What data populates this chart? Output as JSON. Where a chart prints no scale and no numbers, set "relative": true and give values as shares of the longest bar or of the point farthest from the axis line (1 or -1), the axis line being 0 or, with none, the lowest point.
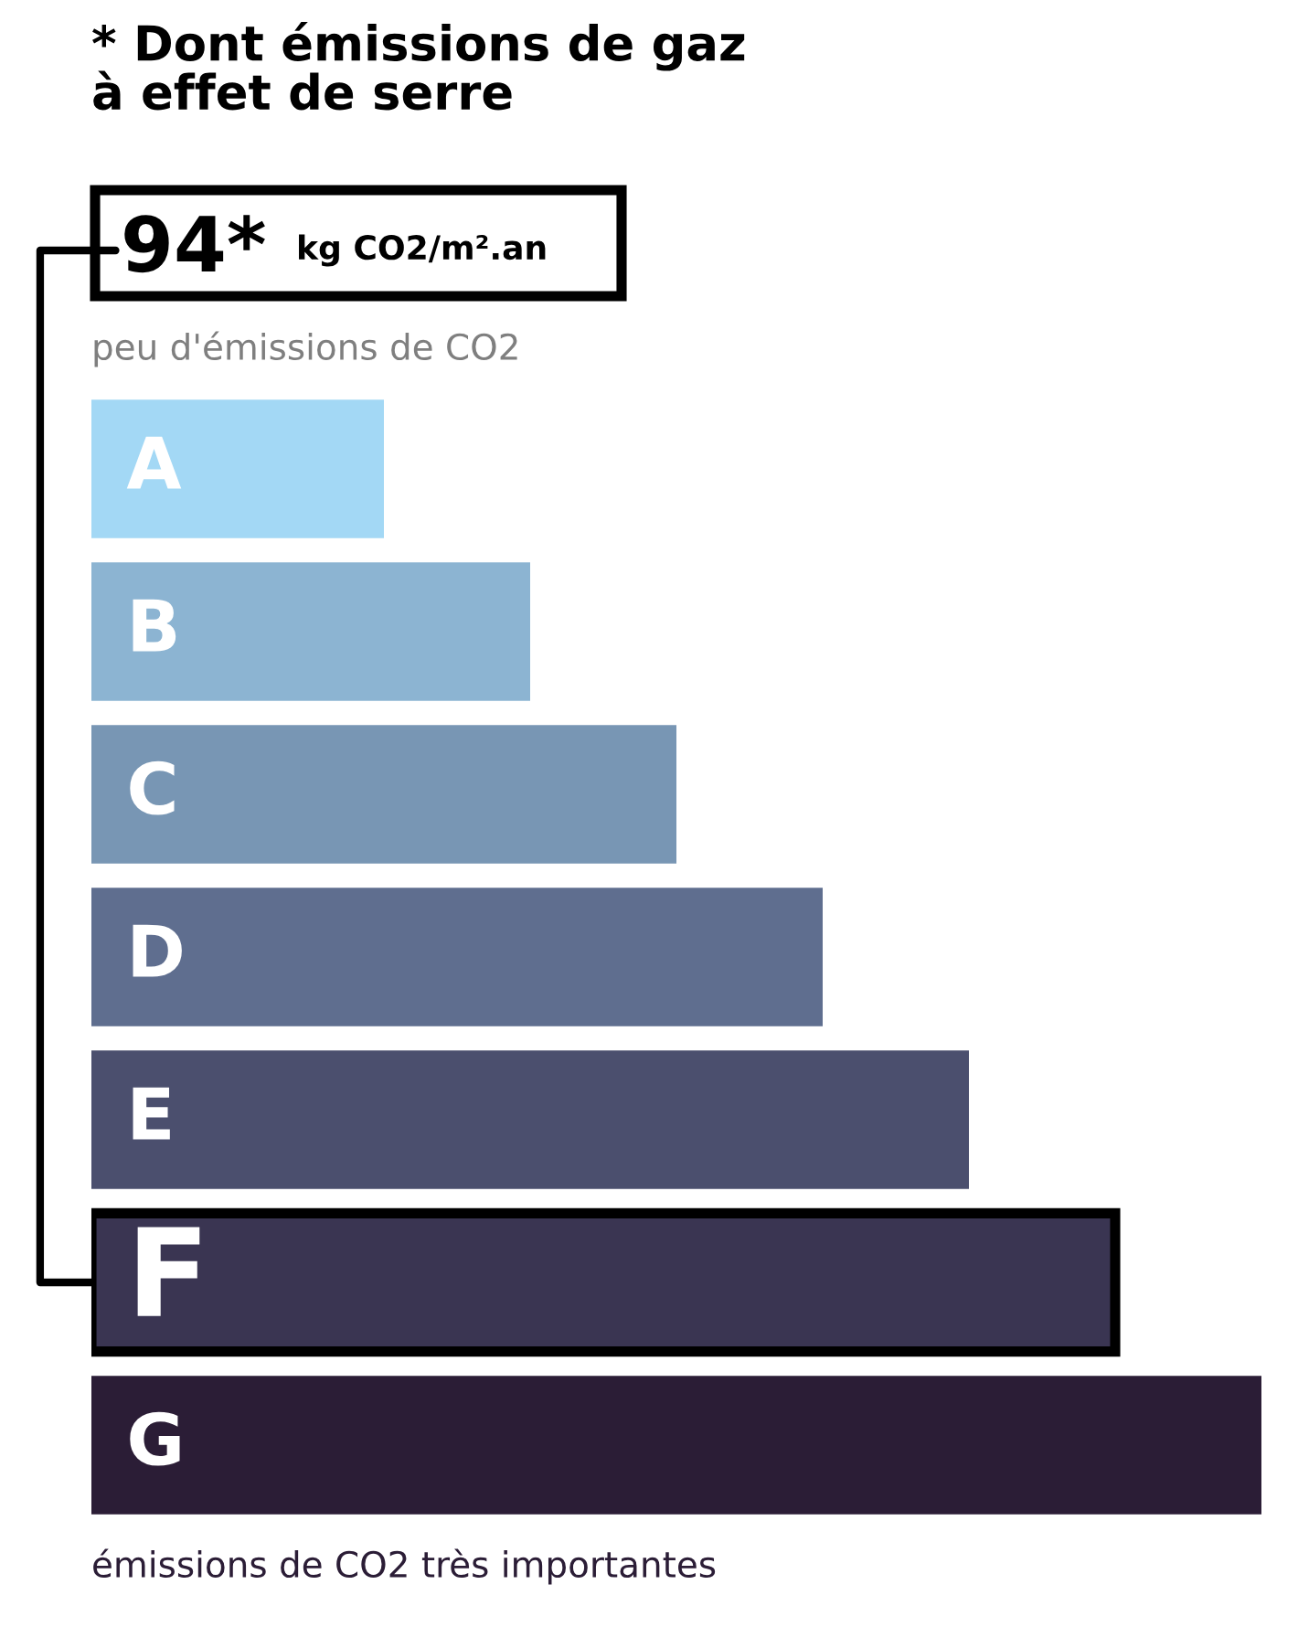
{
  "chart_data": {
    "type": "bar",
    "orientation": "horizontal",
    "relative": true,
    "title": "* Dont émissions de gaz\nà effet de serre",
    "categories": [
      "A",
      "B",
      "C",
      "D",
      "E",
      "F",
      "G"
    ],
    "values": [
      0.25,
      0.375,
      0.5,
      0.625,
      0.75,
      0.875,
      1
    ],
    "colors": [
      "#a3d8f5",
      "#8cb4d2",
      "#7896b4",
      "#5f6e8f",
      "#4b4f6e",
      "#3a3552",
      "#2b1d36"
    ],
    "annotations": [
      {
        "text": "94*",
        "x": 0,
        "y": "F"
      },
      "kg CO2/m².an",
      "peu d'émissions de CO2",
      "émissions de CO2 très importantes"
    ],
    "legend": false
  }
}
